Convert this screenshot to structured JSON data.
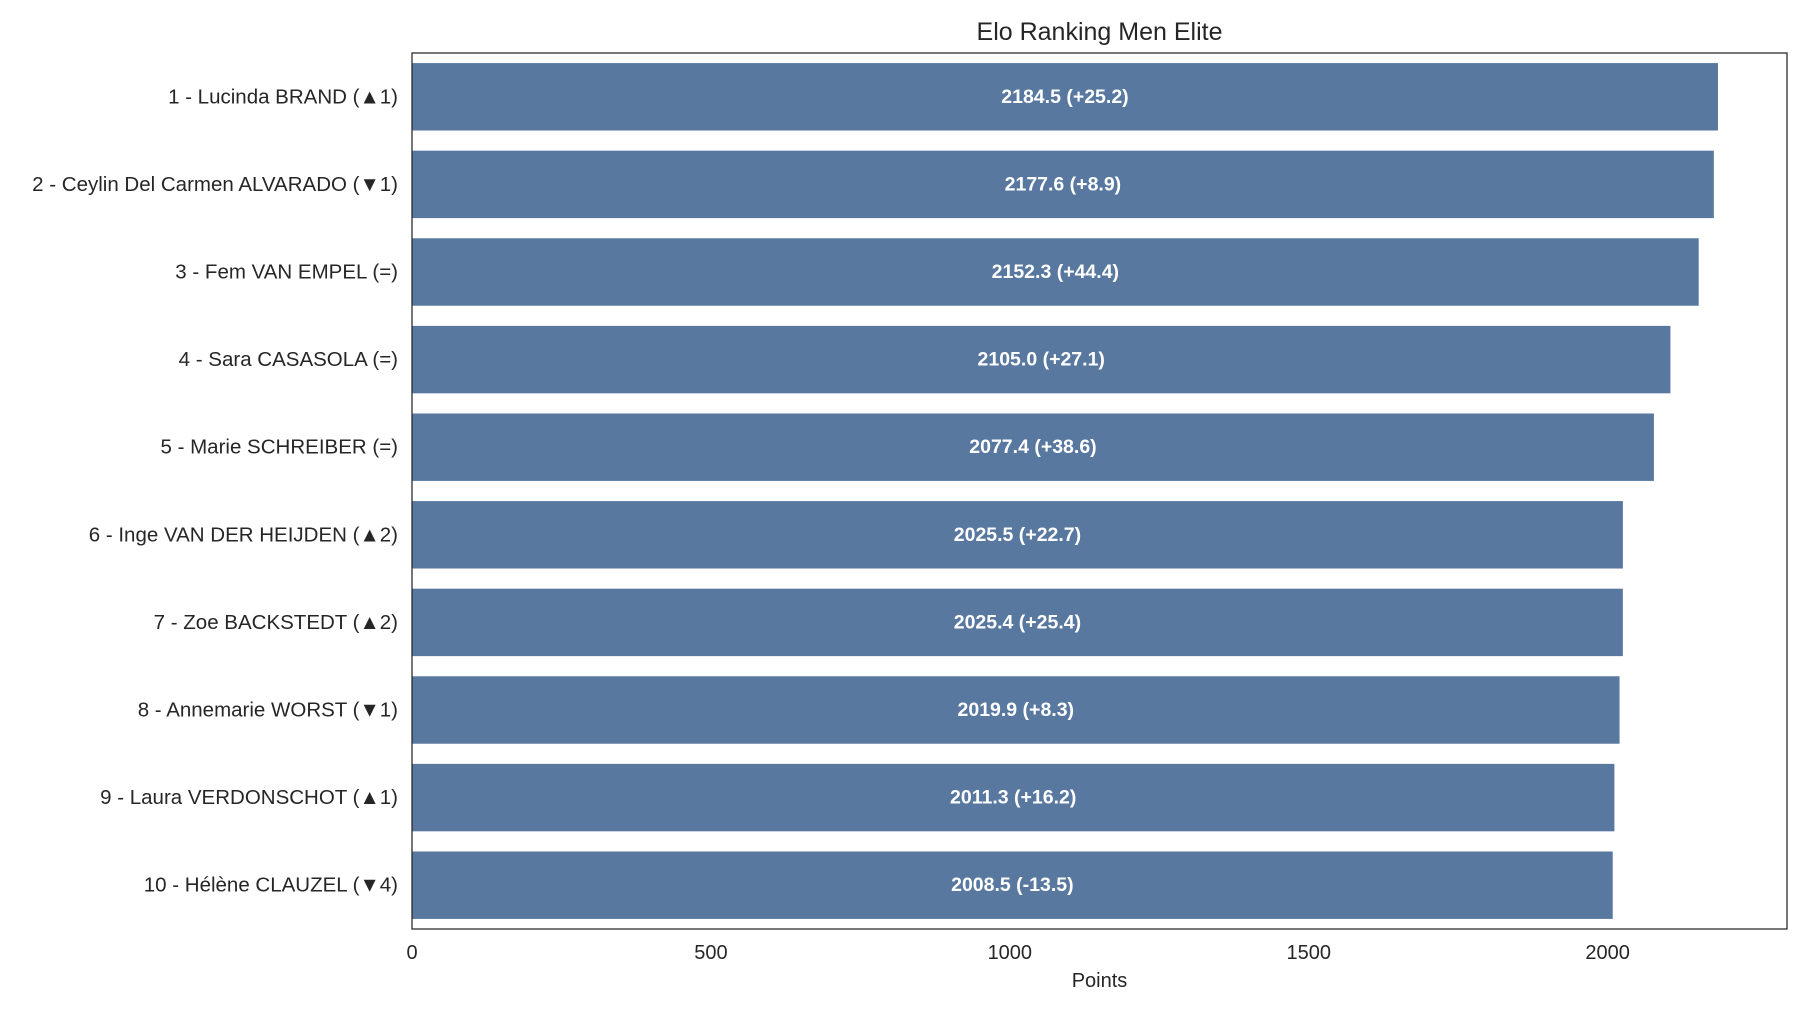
{
  "chart_data": {
    "type": "bar",
    "orientation": "horizontal",
    "title": "Elo Ranking Men Elite",
    "xlabel": "Points",
    "ylabel": "",
    "xlim": [
      0,
      2300
    ],
    "xticks": [
      0,
      500,
      1000,
      1500,
      2000
    ],
    "grid": false,
    "bar_color": "#5878a0",
    "categories": [
      "1 - Lucinda BRAND (▲1)",
      "2 - Ceylin Del Carmen ALVARADO (▼1)",
      "3 - Fem VAN EMPEL (=)",
      "4 - Sara CASASOLA (=)",
      "5 - Marie SCHREIBER (=)",
      "6 - Inge VAN DER HEIJDEN (▲2)",
      "7 - Zoe BACKSTEDT (▲2)",
      "8 - Annemarie WORST (▼1)",
      "9 - Laura VERDONSCHOT (▲1)",
      "10 - Hélène CLAUZEL (▼4)"
    ],
    "values": [
      2184.5,
      2177.6,
      2152.3,
      2105.0,
      2077.4,
      2025.5,
      2025.4,
      2019.9,
      2011.3,
      2008.5
    ],
    "data_labels": [
      "2184.5 (+25.2)",
      "2177.6 (+8.9)",
      "2152.3 (+44.4)",
      "2105.0 (+27.1)",
      "2077.4 (+38.6)",
      "2025.5 (+22.7)",
      "2025.4 (+25.4)",
      "2019.9 (+8.3)",
      "2011.3 (+16.2)",
      "2008.5 (-13.5)"
    ]
  }
}
